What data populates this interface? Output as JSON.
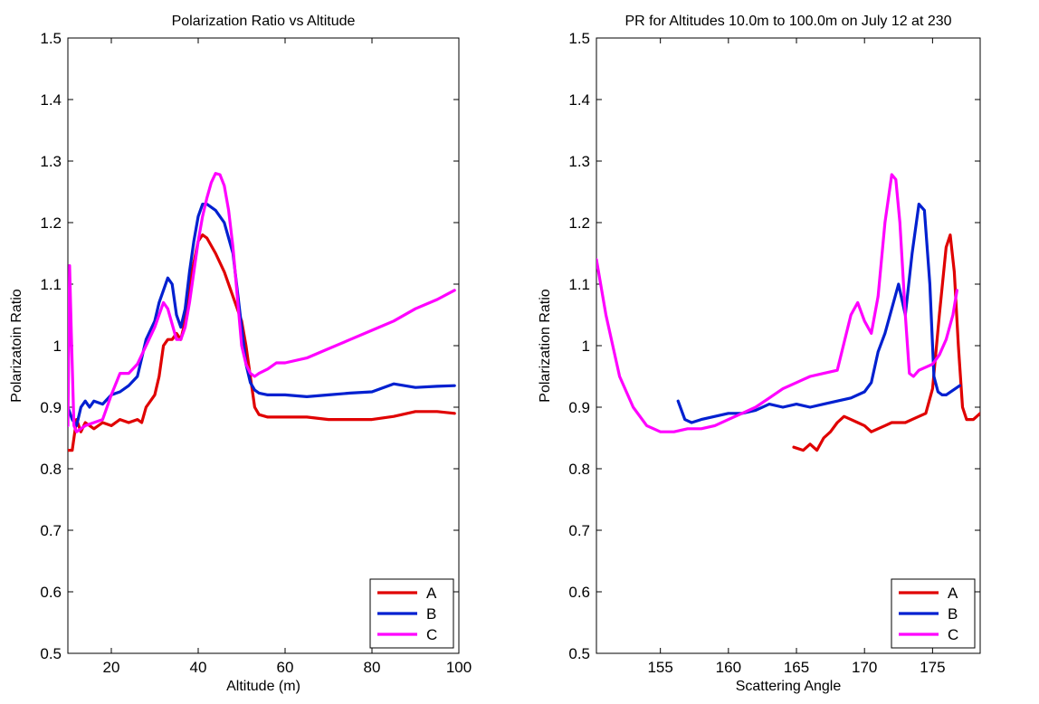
{
  "chart_data": [
    {
      "type": "line",
      "title": "Polarization Ratio vs Altitude",
      "xlabel": "Altitude (m)",
      "ylabel": "Polarizatoin Ratio",
      "xlim": [
        10,
        100
      ],
      "ylim": [
        0.5,
        1.5
      ],
      "xticks": [
        20,
        40,
        60,
        80,
        100
      ],
      "yticks": [
        0.5,
        0.6,
        0.7,
        0.8,
        0.9,
        1.0,
        1.1,
        1.2,
        1.3,
        1.4,
        1.5
      ],
      "ytick_labels": [
        "0.5",
        "0.6",
        "0.7",
        "0.8",
        "0.9",
        "1",
        "1.1",
        "1.2",
        "1.3",
        "1.4",
        "1.5"
      ],
      "grid": false,
      "legend_position": "bottom-right",
      "series": [
        {
          "name": "A",
          "color": "#e00000",
          "x": [
            10,
            11,
            12,
            13,
            14,
            16,
            18,
            20,
            22,
            24,
            26,
            27,
            28,
            30,
            31,
            32,
            33,
            34,
            35,
            36,
            37,
            38,
            40,
            41,
            42,
            44,
            46,
            48,
            50,
            51,
            52,
            53,
            54,
            56,
            60,
            65,
            70,
            75,
            80,
            85,
            90,
            95,
            99
          ],
          "y": [
            0.83,
            0.83,
            0.88,
            0.86,
            0.875,
            0.865,
            0.875,
            0.87,
            0.88,
            0.875,
            0.88,
            0.875,
            0.9,
            0.92,
            0.95,
            1.0,
            1.01,
            1.01,
            1.02,
            1.01,
            1.04,
            1.1,
            1.17,
            1.18,
            1.175,
            1.15,
            1.12,
            1.08,
            1.04,
            1.0,
            0.95,
            0.9,
            0.888,
            0.884,
            0.884,
            0.884,
            0.88,
            0.88,
            0.88,
            0.885,
            0.893,
            0.893,
            0.89
          ]
        },
        {
          "name": "B",
          "color": "#0020d0",
          "x": [
            10,
            11,
            12,
            13,
            14,
            15,
            16,
            18,
            20,
            22,
            24,
            26,
            27,
            28,
            30,
            31,
            32,
            33,
            34,
            35,
            36,
            37,
            38,
            39,
            40,
            41,
            42,
            44,
            46,
            48,
            50,
            51,
            52,
            53,
            54,
            56,
            60,
            65,
            70,
            75,
            80,
            85,
            90,
            95,
            99
          ],
          "y": [
            0.9,
            0.88,
            0.87,
            0.9,
            0.91,
            0.9,
            0.91,
            0.905,
            0.92,
            0.925,
            0.935,
            0.95,
            0.98,
            1.01,
            1.04,
            1.07,
            1.09,
            1.11,
            1.1,
            1.05,
            1.03,
            1.06,
            1.12,
            1.17,
            1.21,
            1.23,
            1.23,
            1.22,
            1.2,
            1.15,
            1.03,
            0.97,
            0.94,
            0.928,
            0.923,
            0.92,
            0.92,
            0.917,
            0.92,
            0.923,
            0.925,
            0.938,
            0.932,
            0.934,
            0.935
          ]
        },
        {
          "name": "C",
          "color": "#ff00ff",
          "x": [
            10,
            10.4,
            10.8,
            11.4,
            12,
            13,
            14,
            16,
            18,
            20,
            22,
            24,
            26,
            28,
            30,
            31,
            32,
            33,
            34,
            35,
            36,
            37,
            38,
            39,
            40,
            41,
            42,
            43,
            44,
            45,
            46,
            47,
            48,
            49,
            50,
            51,
            52,
            53,
            54,
            56,
            58,
            60,
            65,
            70,
            75,
            80,
            85,
            90,
            95,
            99
          ],
          "y": [
            0.87,
            1.13,
            1.02,
            0.87,
            0.86,
            0.865,
            0.87,
            0.875,
            0.88,
            0.92,
            0.955,
            0.955,
            0.97,
            1.0,
            1.03,
            1.05,
            1.07,
            1.06,
            1.035,
            1.01,
            1.01,
            1.03,
            1.07,
            1.12,
            1.17,
            1.21,
            1.24,
            1.265,
            1.28,
            1.278,
            1.26,
            1.22,
            1.16,
            1.08,
            1.0,
            0.97,
            0.955,
            0.95,
            0.955,
            0.962,
            0.972,
            0.972,
            0.98,
            0.995,
            1.01,
            1.025,
            1.04,
            1.06,
            1.075,
            1.09
          ]
        }
      ]
    },
    {
      "type": "line",
      "title": "PR for Altitudes 10.0m to 100.0m on July 12 at 230",
      "xlabel": "Scattering Angle",
      "ylabel": "Polarization Ratio",
      "xlim": [
        150.3,
        178.5
      ],
      "ylim": [
        0.5,
        1.5
      ],
      "xticks": [
        155,
        160,
        165,
        170,
        175
      ],
      "yticks": [
        0.5,
        0.6,
        0.7,
        0.8,
        0.9,
        1.0,
        1.1,
        1.2,
        1.3,
        1.4,
        1.5
      ],
      "ytick_labels": [
        "0.5",
        "0.6",
        "0.7",
        "0.8",
        "0.9",
        "1",
        "1.1",
        "1.2",
        "1.3",
        "1.4",
        "1.5"
      ],
      "grid": false,
      "legend_position": "bottom-right",
      "series": [
        {
          "name": "A",
          "color": "#e00000",
          "x": [
            164.8,
            165.5,
            166.0,
            166.5,
            167.0,
            167.5,
            168.0,
            168.5,
            169.0,
            169.5,
            170.0,
            170.5,
            171.0,
            171.5,
            172.0,
            172.5,
            173.0,
            173.5,
            174.0,
            174.5,
            175.0,
            175.5,
            176.0,
            176.3,
            176.6,
            176.9,
            177.2,
            177.5,
            178.0,
            178.5
          ],
          "y": [
            0.835,
            0.83,
            0.84,
            0.83,
            0.85,
            0.86,
            0.875,
            0.885,
            0.88,
            0.875,
            0.87,
            0.86,
            0.865,
            0.87,
            0.875,
            0.875,
            0.875,
            0.88,
            0.885,
            0.89,
            0.93,
            1.05,
            1.16,
            1.18,
            1.12,
            1.0,
            0.9,
            0.88,
            0.88,
            0.89
          ]
        },
        {
          "name": "B",
          "color": "#0020d0",
          "x": [
            156.3,
            156.8,
            157.3,
            158.0,
            159.0,
            160.0,
            161.0,
            162.0,
            163.0,
            164.0,
            165.0,
            166.0,
            167.0,
            168.0,
            169.0,
            170.0,
            170.5,
            171.0,
            171.5,
            172.0,
            172.5,
            173.0,
            173.5,
            174.0,
            174.4,
            174.8,
            175.1,
            175.4,
            175.7,
            176.0,
            177.0
          ],
          "y": [
            0.91,
            0.88,
            0.875,
            0.88,
            0.885,
            0.89,
            0.89,
            0.895,
            0.905,
            0.9,
            0.905,
            0.9,
            0.905,
            0.91,
            0.915,
            0.925,
            0.94,
            0.99,
            1.02,
            1.06,
            1.1,
            1.05,
            1.15,
            1.23,
            1.22,
            1.1,
            0.95,
            0.925,
            0.92,
            0.92,
            0.935
          ]
        },
        {
          "name": "C",
          "color": "#ff00ff",
          "x": [
            150.3,
            151.0,
            152.0,
            153.0,
            154.0,
            155.0,
            156.0,
            157.0,
            158.0,
            159.0,
            160.0,
            161.0,
            162.0,
            163.0,
            164.0,
            165.0,
            166.0,
            167.0,
            168.0,
            169.0,
            169.5,
            170.0,
            170.5,
            171.0,
            171.5,
            172.0,
            172.3,
            172.6,
            173.0,
            173.3,
            173.6,
            174.0,
            174.5,
            175.0,
            175.5,
            176.0,
            176.5,
            176.8
          ],
          "y": [
            1.14,
            1.05,
            0.95,
            0.9,
            0.87,
            0.86,
            0.86,
            0.865,
            0.865,
            0.87,
            0.88,
            0.89,
            0.9,
            0.915,
            0.93,
            0.94,
            0.95,
            0.955,
            0.96,
            1.05,
            1.07,
            1.04,
            1.02,
            1.08,
            1.2,
            1.278,
            1.27,
            1.2,
            1.05,
            0.955,
            0.95,
            0.96,
            0.965,
            0.97,
            0.985,
            1.01,
            1.05,
            1.09
          ]
        }
      ]
    }
  ]
}
